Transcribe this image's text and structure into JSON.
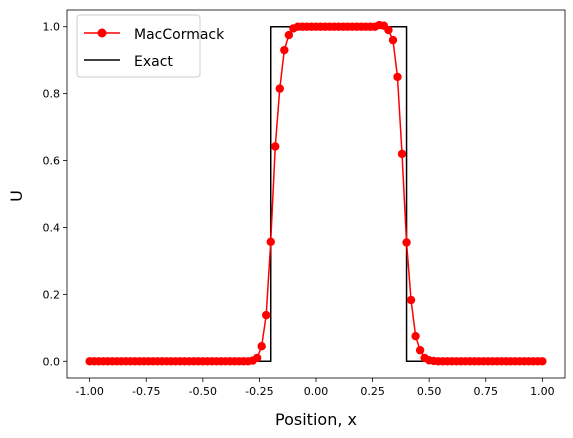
{
  "chart_data": {
    "type": "line",
    "title": "",
    "xlabel": "Position, x",
    "ylabel": "U",
    "xlim": [
      -1.1,
      1.1
    ],
    "ylim": [
      -0.05,
      1.05
    ],
    "xticks": [
      "-1.00",
      "-0.75",
      "-0.50",
      "-0.25",
      "0.00",
      "0.25",
      "0.50",
      "0.75",
      "1.00"
    ],
    "yticks": [
      "0.0",
      "0.2",
      "0.4",
      "0.6",
      "0.8",
      "1.0"
    ],
    "grid": false,
    "legend_position": "upper-left",
    "series": [
      {
        "name": "MacCormack",
        "color": "#ff0000",
        "marker": "circle",
        "x": [
          -1.0,
          -0.98,
          -0.96,
          -0.94,
          -0.92,
          -0.9,
          -0.88,
          -0.86,
          -0.84,
          -0.82,
          -0.8,
          -0.78,
          -0.76,
          -0.74,
          -0.72,
          -0.7,
          -0.68,
          -0.66,
          -0.64,
          -0.62,
          -0.6,
          -0.58,
          -0.56,
          -0.54,
          -0.52,
          -0.5,
          -0.48,
          -0.46,
          -0.44,
          -0.42,
          -0.4,
          -0.38,
          -0.36,
          -0.34,
          -0.32,
          -0.3,
          -0.28,
          -0.26,
          -0.24,
          -0.22,
          -0.2,
          -0.18,
          -0.16,
          -0.14,
          -0.12,
          -0.1,
          -0.08,
          -0.06,
          -0.04,
          -0.02,
          0.0,
          0.02,
          0.04,
          0.06,
          0.08,
          0.1,
          0.12,
          0.14,
          0.16,
          0.18,
          0.2,
          0.22,
          0.24,
          0.26,
          0.28,
          0.3,
          0.32,
          0.34,
          0.36,
          0.38,
          0.4,
          0.42,
          0.44,
          0.46,
          0.48,
          0.5,
          0.52,
          0.54,
          0.56,
          0.58,
          0.6,
          0.62,
          0.64,
          0.66,
          0.68,
          0.7,
          0.72,
          0.74,
          0.76,
          0.78,
          0.8,
          0.82,
          0.84,
          0.86,
          0.88,
          0.9,
          0.92,
          0.94,
          0.96,
          0.98,
          1.0
        ],
        "y": [
          0,
          0,
          0,
          0,
          0,
          0,
          0,
          0,
          0,
          0,
          0,
          0,
          0,
          0,
          0,
          0,
          0,
          0,
          0,
          0,
          0,
          0,
          0,
          0,
          0,
          0,
          0,
          0,
          0,
          0,
          0,
          0,
          0,
          0,
          0,
          0,
          0.002,
          0.01,
          0.045,
          0.138,
          0.357,
          0.642,
          0.815,
          0.93,
          0.975,
          0.995,
          1.0,
          1.0,
          1.0,
          1.0,
          1.0,
          1.0,
          1.0,
          1.0,
          1.0,
          1.0,
          1.0,
          1.0,
          1.0,
          1.0,
          1.0,
          1.0,
          1.0,
          1.0,
          1.005,
          1.003,
          0.99,
          0.96,
          0.85,
          0.62,
          0.355,
          0.183,
          0.075,
          0.033,
          0.01,
          0.003,
          0.001,
          0,
          0,
          0,
          0,
          0,
          0,
          0,
          0,
          0,
          0,
          0,
          0,
          0,
          0,
          0,
          0,
          0,
          0,
          0,
          0,
          0,
          0,
          0,
          0
        ]
      },
      {
        "name": "Exact",
        "color": "#000000",
        "marker": "none",
        "x": [
          -1.0,
          -0.2,
          -0.2,
          0.4,
          0.4,
          1.0
        ],
        "y": [
          0,
          0,
          1,
          1,
          0,
          0
        ]
      }
    ]
  }
}
